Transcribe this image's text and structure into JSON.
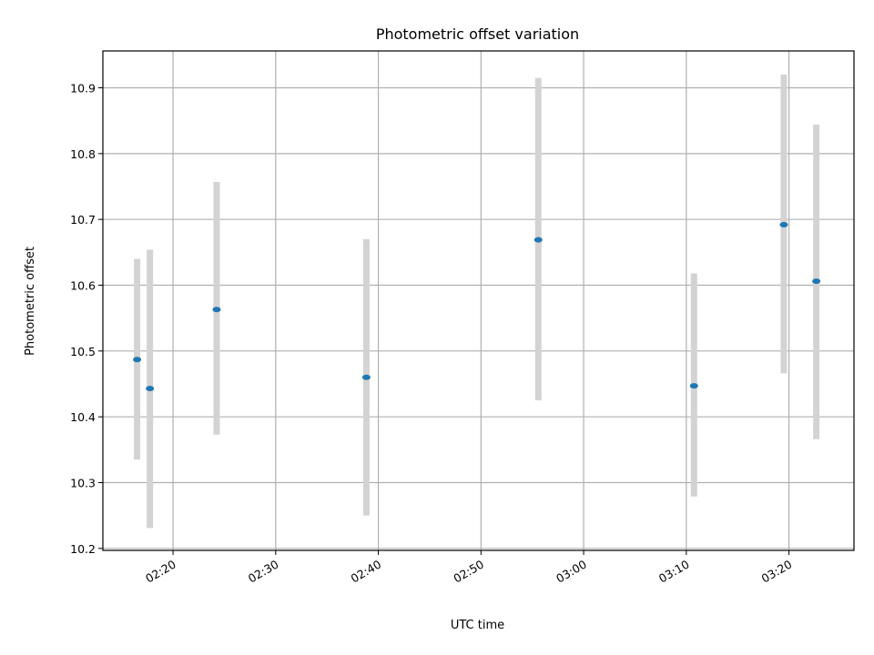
{
  "chart_data": {
    "type": "scatter",
    "title": "Photometric offset variation",
    "xlabel": "UTC time",
    "ylabel": "Photometric offset",
    "x_ticks": [
      "02:20",
      "02:30",
      "02:40",
      "02:50",
      "03:00",
      "03:10",
      "03:20"
    ],
    "y_ticks": [
      "10.2",
      "10.3",
      "10.4",
      "10.5",
      "10.6",
      "10.7",
      "10.8",
      "10.9"
    ],
    "xlim": [
      "02:13:10",
      "03:26:20"
    ],
    "ylim": [
      10.197,
      10.956
    ],
    "grid": true,
    "points": [
      {
        "time": "02:16:30",
        "value": 10.487,
        "err_low": 10.335,
        "err_high": 10.64
      },
      {
        "time": "02:17:45",
        "value": 10.443,
        "err_low": 10.231,
        "err_high": 10.654
      },
      {
        "time": "02:24:15",
        "value": 10.563,
        "err_low": 10.373,
        "err_high": 10.757
      },
      {
        "time": "02:38:50",
        "value": 10.46,
        "err_low": 10.25,
        "err_high": 10.67
      },
      {
        "time": "02:55:35",
        "value": 10.669,
        "err_low": 10.425,
        "err_high": 10.915
      },
      {
        "time": "03:10:45",
        "value": 10.447,
        "err_low": 10.279,
        "err_high": 10.618
      },
      {
        "time": "03:19:30",
        "value": 10.692,
        "err_low": 10.466,
        "err_high": 10.92
      },
      {
        "time": "03:22:40",
        "value": 10.606,
        "err_low": 10.366,
        "err_high": 10.844
      }
    ],
    "colors": {
      "point": "#1f77b4",
      "errorbar": "#d3d3d3",
      "grid": "#b0b0b0",
      "axes": "#000000"
    }
  }
}
